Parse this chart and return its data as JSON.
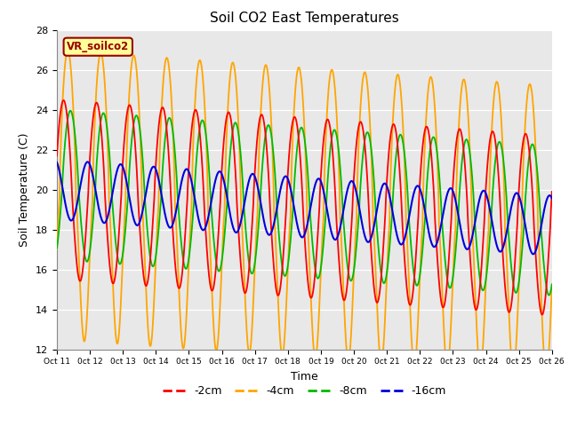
{
  "title": "Soil CO2 East Temperatures",
  "xlabel": "Time",
  "ylabel": "Soil Temperature (C)",
  "ylim": [
    12,
    28
  ],
  "yticks": [
    12,
    14,
    16,
    18,
    20,
    22,
    24,
    26,
    28
  ],
  "xtick_labels": [
    "Oct 11",
    "0ct 12",
    "0ct 13",
    "0ct 14",
    "0ct 15",
    "0ct 16",
    "0ct 17",
    "0ct 18",
    "0ct 19",
    "0ct 20",
    "0ct 21",
    "0ct 22",
    "0ct 23",
    "0ct 24",
    "0ct 25",
    "0ct 26"
  ],
  "colors": {
    "m2cm": "#ff0000",
    "m4cm": "#ffa500",
    "m8cm": "#00bb00",
    "m16cm": "#0000dd"
  },
  "annotation_text": "VR_soilco2",
  "annotation_color": "#990000",
  "annotation_bg": "#ffff99",
  "bg_color": "#e8e8e8",
  "legend_labels": [
    "-2cm",
    "-4cm",
    "-8cm",
    "-16cm"
  ],
  "n_points": 3000,
  "duration_days": 15,
  "base_temp": 20.0,
  "period_hours": 24
}
